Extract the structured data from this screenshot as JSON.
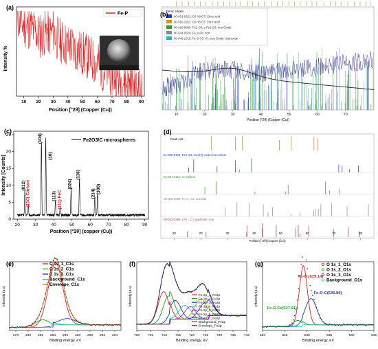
{
  "panels": {
    "a": {
      "label": "(a)",
      "legend": "Fe-P",
      "ylabel": "Intensity %",
      "xlabel": "Position [°2θ] (Copper (Cu))",
      "xticks": [
        "10",
        "20",
        "30",
        "40",
        "50",
        "60",
        "70",
        "80",
        "90"
      ],
      "inset": "SEM micrograph of a microsphere"
    },
    "b": {
      "label": "(b)",
      "legend_title": "Ferric citrate",
      "legend": [
        {
          "text": "00-001-0251; C6 H8 O7; Citric acid",
          "color": "#1f3bd6"
        },
        {
          "text": "00-016-1157; C6 H8 O7; Citric acid",
          "color": "#e08a2c"
        },
        {
          "text": "00-016-0895; Fe2 O3; γ-Fe2 O3; Iron Oxide",
          "color": "#2aa32a"
        },
        {
          "text": "00-034-0529; Fe; ε-Fe; Iron",
          "color": "#8a8a8a"
        },
        {
          "text": "00-046-1315; Fe O ( O H ); Iron Oxide Hydroxide",
          "color": "#27b5c4"
        }
      ],
      "xlabel": "Position [°2θ] (Copper (Cu))",
      "xticks": [
        "10",
        "20",
        "30",
        "40",
        "50",
        "60",
        "70"
      ]
    },
    "c": {
      "label": "(c)",
      "legend": "Fe2O3/C microspheres",
      "ylabel": "Intensity [Counts]",
      "xlabel": "Position [°2θ] (copper (Cu))",
      "xticks": [
        "20",
        "30",
        "40",
        "50",
        "60",
        "70",
        "80",
        "90"
      ],
      "yticks": [
        "0",
        "5",
        "10",
        "15",
        "20",
        "25"
      ],
      "annotations": [
        {
          "text": "(012)",
          "color": "#000"
        },
        {
          "text": "(104)",
          "color": "#000"
        },
        {
          "text": "(10)",
          "color": "#000"
        },
        {
          "text": "(113)",
          "color": "#000"
        },
        {
          "text": "(024)",
          "color": "#000"
        },
        {
          "text": "(116)",
          "color": "#000"
        },
        {
          "text": "(214)",
          "color": "#000"
        },
        {
          "text": "(300)",
          "color": "#000"
        },
        {
          "text": "(110) Carbon",
          "color": "#d42020"
        },
        {
          "text": "(111) FeC",
          "color": "#d42020"
        }
      ]
    },
    "d": {
      "label": "(d)",
      "title": "Peak List",
      "refs": [
        {
          "text": "01-089-8103; Fe2 O3; Iron(III) oxide; Iron Oxide",
          "color": "#1f3bd6"
        },
        {
          "text": "01-081-9116; C; Carbon",
          "color": "#2aa32a"
        },
        {
          "text": "00-006-0686; Fe C; Iron Carbide",
          "color": "#8a8a8a"
        },
        {
          "text": "00-023-0298; ( Fe , C ); austenite; Iron",
          "color": "#b04040"
        }
      ],
      "xticks": [
        "10",
        "20",
        "30",
        "40",
        "50",
        "60",
        "70",
        "80"
      ],
      "xlabel": "Position [°2θ] (Copper (Cu))"
    },
    "e": {
      "label": "(e)",
      "legend": [
        {
          "text": "C 1s_1_C1s",
          "color": "#e02020"
        },
        {
          "text": "C 1s_2_C1s",
          "color": "#20a020"
        },
        {
          "text": "C 1s_3_C1s",
          "color": "#2030c0"
        },
        {
          "text": "Background_C1s",
          "color": "#20c0c0"
        },
        {
          "text": "Envelope_C1s",
          "color": "#e07020"
        }
      ],
      "xlabel": "Binding energy, eV",
      "ylabel": "Intensity (a.u)",
      "xticks": [
        "278",
        "280",
        "282",
        "284",
        "286",
        "288",
        "290",
        "292",
        "294"
      ]
    },
    "f": {
      "label": "(f)",
      "legend": [
        {
          "text": "Fe 2p_1_Fe2p",
          "color": "#e02020"
        },
        {
          "text": "Fe 2p_2_Fe2p",
          "color": "#20a020"
        },
        {
          "text": "Fe 2p_3_Fe2p",
          "color": "#2030c0"
        },
        {
          "text": "Fe 2p_4_Fe2p",
          "color": "#20c0c0"
        },
        {
          "text": "Fe 2p_5_Fe2p",
          "color": "#c020c0"
        },
        {
          "text": "Fe 2p_6_Fe2p",
          "color": "#a0a020"
        },
        {
          "text": "Fe 2p_7_Fe2p",
          "color": "#4040ff"
        },
        {
          "text": "Background_Fe2p",
          "color": "#8b2252"
        },
        {
          "text": "Envelope_Fe2p",
          "color": "#202080"
        }
      ],
      "xlabel": "Binding energy, eV",
      "ylabel": "Intensity (a.u)",
      "xticks": [
        "700",
        "705",
        "710",
        "715",
        "720",
        "725",
        "730",
        "735",
        "740"
      ]
    },
    "g": {
      "label": "(g)",
      "legend": [
        {
          "text": "O 1s_1_O1s",
          "color": "#e02020"
        },
        {
          "text": "O 1s_2_O1s",
          "color": "#20a020"
        },
        {
          "text": "O 1s_3_O1s",
          "color": "#2030c0"
        },
        {
          "text": "Background_O1s",
          "color": "#20c0c0"
        }
      ],
      "annotations": [
        {
          "text": "Fe-O (529.14)",
          "color": "#d42020"
        },
        {
          "text": "Fe-O-C(530.89)",
          "color": "#2030c0"
        },
        {
          "text": "Fe-O-Fe(527.91)",
          "color": "#20a020"
        }
      ],
      "xlabel": "Binding energy, eV",
      "ylabel": "Intensity (a.u)",
      "xticks": [
        "520",
        "525",
        "530",
        "535",
        "540",
        "545"
      ]
    }
  },
  "chart_data": [
    {
      "type": "line",
      "panel": "a",
      "series": [
        {
          "name": "Fe-P",
          "color": "#e02020",
          "x": [
            5,
            8,
            10,
            12,
            14,
            16,
            18,
            20,
            22,
            24,
            26,
            28,
            30,
            32,
            34,
            36,
            38,
            40,
            42,
            44,
            46,
            48,
            50,
            52,
            54,
            56,
            58,
            60,
            62,
            64,
            66,
            68,
            70,
            72,
            74,
            76,
            78,
            80,
            82,
            84,
            86,
            88,
            90
          ],
          "y": [
            95,
            88,
            84,
            80,
            82,
            78,
            76,
            72,
            70,
            74,
            76,
            72,
            78,
            70,
            66,
            64,
            62,
            58,
            60,
            56,
            54,
            52,
            50,
            48,
            46,
            44,
            40,
            38,
            36,
            32,
            30,
            28,
            26,
            24,
            22,
            20,
            18,
            16,
            14,
            12,
            10,
            8,
            6
          ]
        }
      ],
      "xlim": [
        5,
        92
      ]
    },
    {
      "type": "line",
      "panel": "b",
      "xlim": [
        5,
        80
      ]
    },
    {
      "type": "line",
      "panel": "c",
      "series": [
        {
          "name": "Fe2O3/C microspheres",
          "color": "#000000"
        }
      ],
      "peaks": [
        {
          "x": 24.1,
          "y": 7.5
        },
        {
          "x": 26.0,
          "y": 3.0
        },
        {
          "x": 33.2,
          "y": 21.5
        },
        {
          "x": 35.6,
          "y": 23.0
        },
        {
          "x": 40.9,
          "y": 4.5
        },
        {
          "x": 43.5,
          "y": 2.5
        },
        {
          "x": 49.5,
          "y": 8.0
        },
        {
          "x": 54.1,
          "y": 10.8
        },
        {
          "x": 62.5,
          "y": 5.2
        },
        {
          "x": 64.0,
          "y": 6.5
        }
      ],
      "xlim": [
        18,
        92
      ],
      "ylim": [
        0,
        26
      ]
    },
    {
      "type": "bar",
      "panel": "d",
      "xlim": [
        5,
        85
      ]
    },
    {
      "type": "line",
      "panel": "e",
      "series": [
        {
          "name": "C 1s_1_C1s",
          "center": 284.4,
          "height": 1.0,
          "width": 1.2
        },
        {
          "name": "C 1s_2_C1s",
          "center": 282.4,
          "height": 0.12,
          "width": 1.2
        },
        {
          "name": "C 1s_3_C1s",
          "center": 286.3,
          "height": 0.1,
          "width": 1.4
        }
      ],
      "xlim": [
        277,
        295
      ]
    },
    {
      "type": "line",
      "panel": "f",
      "series": [
        {
          "name": "Fe 2p_1_Fe2p",
          "center": 709.8,
          "height": 0.52,
          "width": 2.0
        },
        {
          "name": "Fe 2p_2_Fe2p",
          "center": 711.6,
          "height": 0.45,
          "width": 2.0
        },
        {
          "name": "Fe 2p_3_Fe2p",
          "center": 714.0,
          "height": 0.3,
          "width": 2.0
        },
        {
          "name": "Fe 2p_4_Fe2p",
          "center": 717.5,
          "height": 0.22,
          "width": 2.2
        },
        {
          "name": "Fe 2p_5_Fe2p",
          "center": 719.5,
          "height": 0.2,
          "width": 2.0
        },
        {
          "name": "Fe 2p_6_Fe2p",
          "center": 723.3,
          "height": 0.32,
          "width": 2.2
        },
        {
          "name": "Fe 2p_7_Fe2p",
          "center": 725.2,
          "height": 0.28,
          "width": 2.4
        }
      ],
      "xlim": [
        700,
        740
      ]
    },
    {
      "type": "line",
      "panel": "g",
      "series": [
        {
          "name": "O 1s_1_O1s",
          "center": 529.14,
          "height": 0.95,
          "width": 0.9
        },
        {
          "name": "O 1s_2_O1s",
          "center": 527.91,
          "height": 0.1,
          "width": 1.0
        },
        {
          "name": "O 1s_3_O1s",
          "center": 530.89,
          "height": 0.42,
          "width": 1.3
        }
      ],
      "xlim": [
        520,
        545
      ]
    }
  ]
}
